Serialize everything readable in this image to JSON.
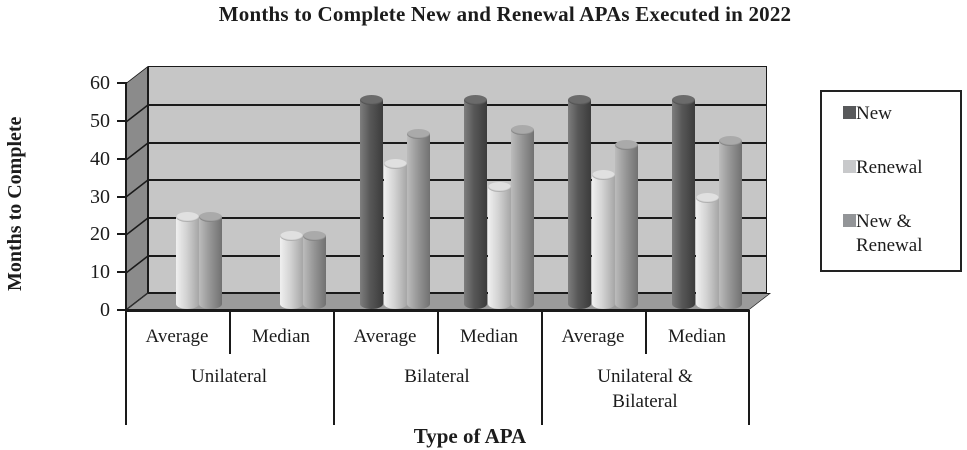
{
  "title": "Months to Complete New and Renewal APAs Executed in 2022",
  "y_axis": {
    "title": "Months to Complete",
    "ticks": [
      "0",
      "10",
      "20",
      "30",
      "40",
      "50",
      "60"
    ]
  },
  "x_axis": {
    "title": "Type of APA",
    "sub_labels": [
      "Average",
      "Median"
    ],
    "group_labels": [
      "Unilateral",
      "Bilateral",
      "Unilateral & Bilateral"
    ]
  },
  "legend": {
    "labels": [
      "New",
      "Renewal",
      "New & Renewal"
    ]
  },
  "chart_data": {
    "type": "bar",
    "style": "3d-cylinder",
    "title": "Months to Complete New and Renewal APAs Executed in 2022",
    "xlabel": "Type of APA",
    "ylabel": "Months to Complete",
    "ylim": [
      0,
      60
    ],
    "y_tick_step": 10,
    "gridlines": true,
    "legend_position": "right",
    "categories": [
      "Unilateral Average",
      "Unilateral Median",
      "Bilateral Average",
      "Bilateral Median",
      "Unilateral & Bilateral Average",
      "Unilateral & Bilateral Median"
    ],
    "series": [
      {
        "name": "New",
        "values": [
          null,
          null,
          54,
          54,
          54,
          54
        ]
      },
      {
        "name": "Renewal",
        "values": [
          23,
          18,
          37,
          31,
          34,
          28
        ]
      },
      {
        "name": "New & Renewal",
        "values": [
          23,
          18,
          45,
          46,
          42,
          43
        ]
      }
    ]
  },
  "colors": {
    "background": "#ffffff",
    "wall": "#c6c6c6",
    "side_wall": "#8b8b8b",
    "floor": "#9b9b9b",
    "gridline": "#1a1a1a",
    "text": "#1c1c1c",
    "series": [
      {
        "name": "New",
        "swatch": "#58595b",
        "light": "#7e7e7e",
        "mid": "#565656",
        "dark": "#3c3c3c",
        "top": "#6b6b6b"
      },
      {
        "name": "Renewal",
        "swatch": "#c8c9cb",
        "light": "#f0f0f0",
        "mid": "#d3d3d3",
        "dark": "#a6a6a6",
        "top": "#e0e0e0"
      },
      {
        "name": "New & Renewal",
        "swatch": "#939598",
        "light": "#bcbcbc",
        "mid": "#989898",
        "dark": "#717171",
        "top": "#aaaaaa"
      }
    ]
  }
}
